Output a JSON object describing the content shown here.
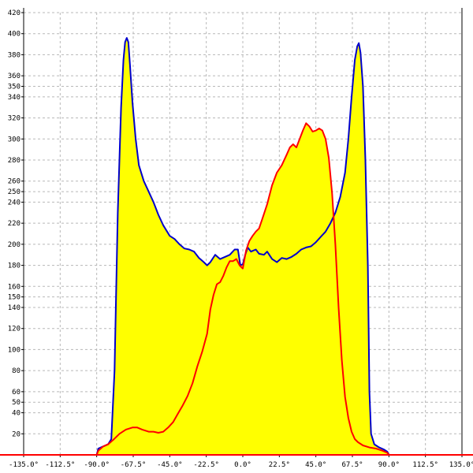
{
  "chart_data": {
    "type": "area",
    "title": "",
    "xlabel": "",
    "ylabel": "",
    "xlim": [
      -135,
      135
    ],
    "ylim": [
      0,
      420
    ],
    "grid": true,
    "x_ticks": [
      {
        "value": -135,
        "label": "-135.0°"
      },
      {
        "value": -112.5,
        "label": "-112.5°"
      },
      {
        "value": -90,
        "label": "-90.0°"
      },
      {
        "value": -67.5,
        "label": "-67.5°"
      },
      {
        "value": -45,
        "label": "-45.0°"
      },
      {
        "value": -22.5,
        "label": "-22.5°"
      },
      {
        "value": 0,
        "label": "0.0°"
      },
      {
        "value": 22.5,
        "label": "22.5°"
      },
      {
        "value": 45,
        "label": "45.0°"
      },
      {
        "value": 67.5,
        "label": "67.5°"
      },
      {
        "value": 90,
        "label": "90.0°"
      },
      {
        "value": 112.5,
        "label": "112.5°"
      },
      {
        "value": 135,
        "label": "135.0°"
      }
    ],
    "y_ticks": [
      {
        "value": 20,
        "label": "20"
      },
      {
        "value": 40,
        "label": "40"
      },
      {
        "value": 50,
        "label": "50"
      },
      {
        "value": 60,
        "label": "60"
      },
      {
        "value": 80,
        "label": "80"
      },
      {
        "value": 100,
        "label": "100"
      },
      {
        "value": 120,
        "label": "120"
      },
      {
        "value": 140,
        "label": "140"
      },
      {
        "value": 150,
        "label": "150"
      },
      {
        "value": 160,
        "label": "160"
      },
      {
        "value": 180,
        "label": "180"
      },
      {
        "value": 200,
        "label": "200"
      },
      {
        "value": 220,
        "label": "220"
      },
      {
        "value": 240,
        "label": "240"
      },
      {
        "value": 250,
        "label": "250"
      },
      {
        "value": 260,
        "label": "260"
      },
      {
        "value": 280,
        "label": "280"
      },
      {
        "value": 300,
        "label": "300"
      },
      {
        "value": 320,
        "label": "320"
      },
      {
        "value": 340,
        "label": "340"
      },
      {
        "value": 350,
        "label": "350"
      },
      {
        "value": 360,
        "label": "360"
      },
      {
        "value": 380,
        "label": "380"
      },
      {
        "value": 400,
        "label": "400"
      },
      {
        "value": 420,
        "label": "420"
      }
    ],
    "series": [
      {
        "color": "#0000cc",
        "fill": "#ffff00",
        "points": [
          [
            -90,
            0
          ],
          [
            -89,
            6
          ],
          [
            -86,
            8
          ],
          [
            -83,
            10
          ],
          [
            -81,
            15
          ],
          [
            -79,
            80
          ],
          [
            -77,
            230
          ],
          [
            -75,
            330
          ],
          [
            -73.5,
            375
          ],
          [
            -72.5,
            392
          ],
          [
            -71.5,
            396
          ],
          [
            -70.5,
            392
          ],
          [
            -69.5,
            370
          ],
          [
            -68,
            335
          ],
          [
            -66,
            300
          ],
          [
            -64,
            275
          ],
          [
            -61,
            260
          ],
          [
            -58,
            250
          ],
          [
            -55,
            240
          ],
          [
            -52,
            228
          ],
          [
            -49,
            218
          ],
          [
            -45,
            208
          ],
          [
            -42,
            205
          ],
          [
            -39,
            200
          ],
          [
            -36,
            196
          ],
          [
            -33,
            195
          ],
          [
            -30,
            193
          ],
          [
            -27,
            187
          ],
          [
            -24,
            183
          ],
          [
            -22,
            180
          ],
          [
            -20,
            183
          ],
          [
            -17,
            190
          ],
          [
            -14,
            186
          ],
          [
            -11,
            188
          ],
          [
            -8,
            190
          ],
          [
            -5,
            195
          ],
          [
            -3,
            195
          ],
          [
            -1.5,
            180
          ],
          [
            0,
            181
          ],
          [
            1.5,
            190
          ],
          [
            3,
            197
          ],
          [
            5,
            193
          ],
          [
            8,
            195
          ],
          [
            10,
            191
          ],
          [
            13,
            190
          ],
          [
            15,
            193
          ],
          [
            18,
            186
          ],
          [
            21,
            183
          ],
          [
            24,
            187
          ],
          [
            27,
            186
          ],
          [
            30,
            188
          ],
          [
            33,
            191
          ],
          [
            36,
            195
          ],
          [
            39,
            197
          ],
          [
            42,
            198
          ],
          [
            45,
            202
          ],
          [
            48,
            207
          ],
          [
            51,
            212
          ],
          [
            54,
            220
          ],
          [
            57,
            230
          ],
          [
            60,
            245
          ],
          [
            63,
            268
          ],
          [
            65,
            300
          ],
          [
            67,
            340
          ],
          [
            69,
            375
          ],
          [
            70.5,
            388
          ],
          [
            71.5,
            391
          ],
          [
            72.5,
            382
          ],
          [
            74,
            350
          ],
          [
            75.5,
            280
          ],
          [
            77,
            180
          ],
          [
            78,
            60
          ],
          [
            79,
            20
          ],
          [
            81,
            10
          ],
          [
            84,
            7
          ],
          [
            87,
            5
          ],
          [
            89,
            3
          ],
          [
            90,
            0
          ]
        ]
      },
      {
        "color": "#ff0000",
        "fill": "#ffff00",
        "points": [
          [
            -90,
            0
          ],
          [
            -89,
            4
          ],
          [
            -86,
            8
          ],
          [
            -83,
            10
          ],
          [
            -80,
            14
          ],
          [
            -76,
            20
          ],
          [
            -72,
            24
          ],
          [
            -68,
            26
          ],
          [
            -65,
            26
          ],
          [
            -62,
            24
          ],
          [
            -58,
            22
          ],
          [
            -55,
            22
          ],
          [
            -52,
            21
          ],
          [
            -49,
            22
          ],
          [
            -46,
            26
          ],
          [
            -43,
            31
          ],
          [
            -40,
            39
          ],
          [
            -37,
            47
          ],
          [
            -34,
            56
          ],
          [
            -31,
            68
          ],
          [
            -28,
            84
          ],
          [
            -25,
            98
          ],
          [
            -22,
            115
          ],
          [
            -20,
            138
          ],
          [
            -18,
            152
          ],
          [
            -16,
            162
          ],
          [
            -14,
            164
          ],
          [
            -12,
            170
          ],
          [
            -10,
            178
          ],
          [
            -8,
            184
          ],
          [
            -6,
            184
          ],
          [
            -4,
            186
          ],
          [
            -2,
            180
          ],
          [
            0,
            177
          ],
          [
            2,
            194
          ],
          [
            4,
            203
          ],
          [
            6,
            208
          ],
          [
            8,
            212
          ],
          [
            10,
            215
          ],
          [
            12,
            224
          ],
          [
            15,
            238
          ],
          [
            18,
            256
          ],
          [
            21,
            268
          ],
          [
            24,
            275
          ],
          [
            27,
            285
          ],
          [
            29,
            292
          ],
          [
            31,
            295
          ],
          [
            33,
            292
          ],
          [
            35,
            300
          ],
          [
            37,
            308
          ],
          [
            39,
            315
          ],
          [
            41,
            312
          ],
          [
            43,
            307
          ],
          [
            45,
            308
          ],
          [
            47,
            310
          ],
          [
            49,
            308
          ],
          [
            51,
            300
          ],
          [
            53,
            282
          ],
          [
            55,
            248
          ],
          [
            57,
            200
          ],
          [
            59,
            140
          ],
          [
            61,
            90
          ],
          [
            63,
            55
          ],
          [
            65,
            35
          ],
          [
            67,
            22
          ],
          [
            69,
            15
          ],
          [
            71,
            12
          ],
          [
            74,
            9
          ],
          [
            78,
            7
          ],
          [
            82,
            6
          ],
          [
            86,
            4
          ],
          [
            89,
            2
          ],
          [
            90,
            0
          ]
        ]
      }
    ]
  }
}
